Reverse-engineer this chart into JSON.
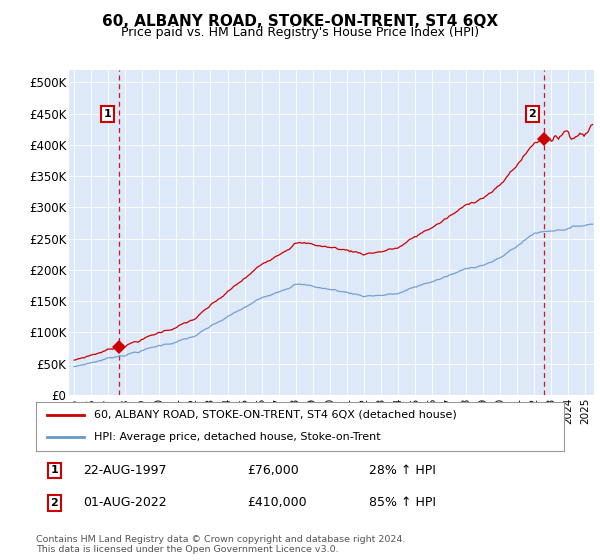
{
  "title": "60, ALBANY ROAD, STOKE-ON-TRENT, ST4 6QX",
  "subtitle": "Price paid vs. HM Land Registry's House Price Index (HPI)",
  "background_color": "#dde8f8",
  "plot_bg_color": "#dde8f8",
  "ylim": [
    0,
    520000
  ],
  "yticks": [
    0,
    50000,
    100000,
    150000,
    200000,
    250000,
    300000,
    350000,
    400000,
    450000,
    500000
  ],
  "ytick_labels": [
    "£0",
    "£50K",
    "£100K",
    "£150K",
    "£200K",
    "£250K",
    "£300K",
    "£350K",
    "£400K",
    "£450K",
    "£500K"
  ],
  "xlim_start": 1994.7,
  "xlim_end": 2025.5,
  "sale1_year": 1997.64,
  "sale1_price": 76000,
  "sale2_year": 2022.58,
  "sale2_price": 410000,
  "sale1_label": "1",
  "sale2_label": "2",
  "legend_line1": "60, ALBANY ROAD, STOKE-ON-TRENT, ST4 6QX (detached house)",
  "legend_line2": "HPI: Average price, detached house, Stoke-on-Trent",
  "annotation1_date": "22-AUG-1997",
  "annotation1_price": "£76,000",
  "annotation1_hpi": "28% ↑ HPI",
  "annotation2_date": "01-AUG-2022",
  "annotation2_price": "£410,000",
  "annotation2_hpi": "85% ↑ HPI",
  "copyright_text": "Contains HM Land Registry data © Crown copyright and database right 2024.\nThis data is licensed under the Open Government Licence v3.0.",
  "house_line_color": "#cc0000",
  "hpi_line_color": "#6699cc",
  "dashed_line_color": "#cc0000",
  "marker_color": "#cc0000",
  "label_box_color": "#cc0000",
  "grid_color": "#c8d8e8",
  "white_grid_color": "#ffffff"
}
